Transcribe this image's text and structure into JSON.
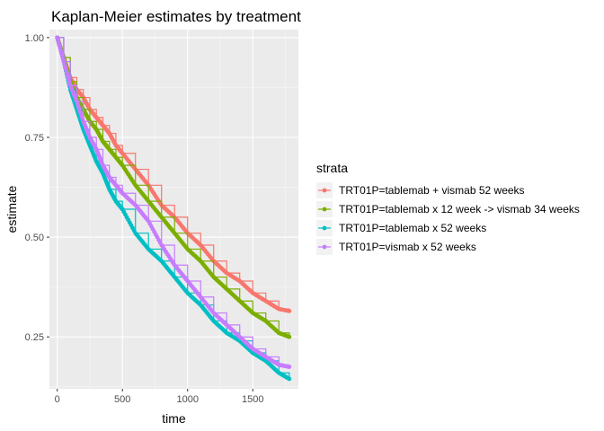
{
  "chart_data": {
    "type": "line",
    "title": "Kaplan-Meier estimates by treatment",
    "xlabel": "time",
    "ylabel": "estimate",
    "xlim": [
      -60,
      1850
    ],
    "ylim": [
      0.12,
      1.02
    ],
    "xticks": [
      0,
      500,
      1000,
      1500
    ],
    "yticks": [
      0.25,
      0.5,
      0.75,
      1.0
    ],
    "xtick_labels": [
      "0",
      "500",
      "1000",
      "1500"
    ],
    "ytick_labels": [
      "0.25",
      "0.50",
      "0.75",
      "1.00"
    ],
    "grid": true,
    "legend": {
      "title": "strata",
      "position": "right"
    },
    "series": [
      {
        "name": "TRT01P=tablemab + vismab 52 weeks",
        "color": "#F8766D",
        "x": [
          0,
          50,
          100,
          150,
          200,
          250,
          300,
          350,
          400,
          450,
          500,
          600,
          700,
          800,
          900,
          1000,
          1100,
          1200,
          1300,
          1400,
          1500,
          1600,
          1700,
          1780
        ],
        "y": [
          1.0,
          0.95,
          0.9,
          0.87,
          0.85,
          0.82,
          0.8,
          0.78,
          0.76,
          0.73,
          0.71,
          0.67,
          0.63,
          0.58,
          0.55,
          0.51,
          0.48,
          0.44,
          0.41,
          0.39,
          0.36,
          0.34,
          0.32,
          0.315
        ]
      },
      {
        "name": "TRT01P=tablemab x 12 week -> vismab 34 weeks",
        "color": "#7CAE00",
        "x": [
          0,
          50,
          100,
          150,
          200,
          250,
          300,
          350,
          400,
          450,
          500,
          600,
          700,
          800,
          900,
          1000,
          1100,
          1200,
          1300,
          1400,
          1500,
          1600,
          1700,
          1780
        ],
        "y": [
          1.0,
          0.95,
          0.89,
          0.85,
          0.82,
          0.79,
          0.77,
          0.74,
          0.72,
          0.7,
          0.68,
          0.63,
          0.59,
          0.55,
          0.51,
          0.47,
          0.44,
          0.4,
          0.37,
          0.34,
          0.31,
          0.29,
          0.26,
          0.25
        ]
      },
      {
        "name": "TRT01P=tablemab x 52 weeks",
        "color": "#00BFC4",
        "x": [
          0,
          50,
          100,
          150,
          200,
          250,
          300,
          350,
          400,
          450,
          500,
          600,
          700,
          800,
          900,
          1000,
          1100,
          1200,
          1300,
          1400,
          1500,
          1600,
          1700,
          1780
        ],
        "y": [
          1.0,
          0.94,
          0.87,
          0.82,
          0.77,
          0.73,
          0.69,
          0.66,
          0.62,
          0.59,
          0.57,
          0.51,
          0.47,
          0.44,
          0.4,
          0.36,
          0.33,
          0.29,
          0.26,
          0.24,
          0.21,
          0.19,
          0.16,
          0.145
        ]
      },
      {
        "name": "TRT01P=vismab x 52 weeks",
        "color": "#C77CFF",
        "x": [
          0,
          50,
          100,
          150,
          200,
          250,
          300,
          350,
          400,
          450,
          500,
          600,
          700,
          800,
          900,
          1000,
          1100,
          1200,
          1300,
          1400,
          1500,
          1600,
          1700,
          1780
        ],
        "y": [
          1.0,
          0.94,
          0.88,
          0.84,
          0.79,
          0.75,
          0.72,
          0.68,
          0.65,
          0.63,
          0.61,
          0.58,
          0.54,
          0.48,
          0.43,
          0.39,
          0.35,
          0.31,
          0.28,
          0.25,
          0.22,
          0.2,
          0.18,
          0.175
        ]
      }
    ]
  }
}
